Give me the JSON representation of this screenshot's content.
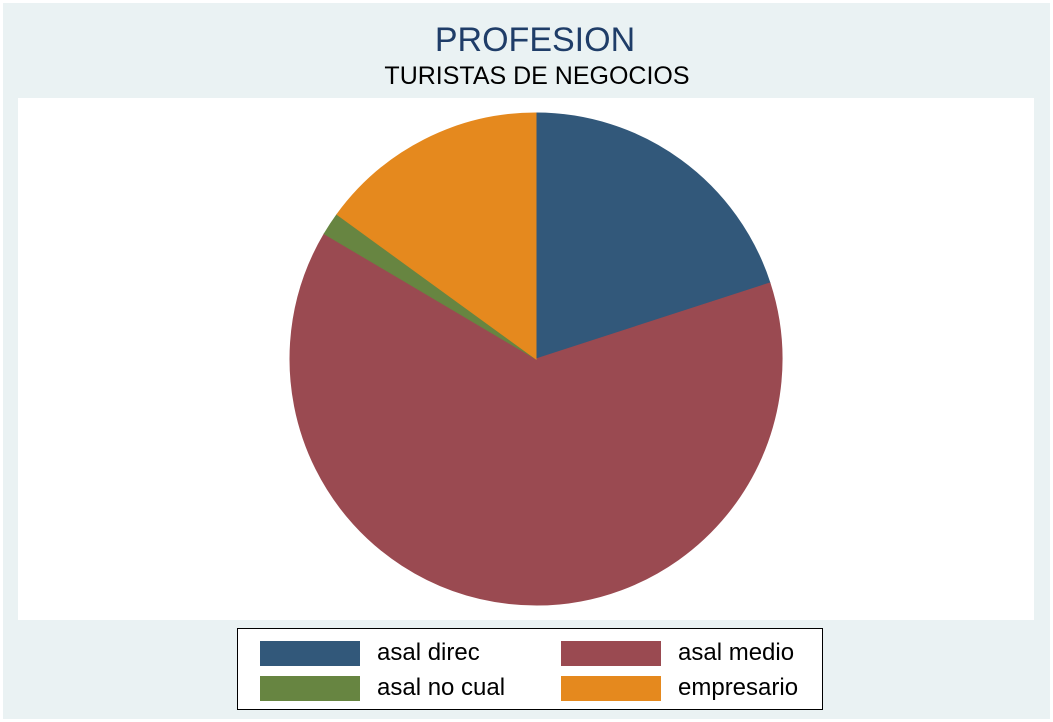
{
  "chart_data": {
    "type": "pie",
    "title": "PROFESION",
    "subtitle": "TURISTAS DE NEGOCIOS",
    "slices": [
      {
        "label": "asal direc",
        "value": 20.0,
        "color": "#32587a"
      },
      {
        "label": "asal medio",
        "value": 63.5,
        "color": "#9a4a51"
      },
      {
        "label": "asal no cual",
        "value": 1.5,
        "color": "#678541"
      },
      {
        "label": "empresario",
        "value": 15.0,
        "color": "#e5891e"
      }
    ],
    "legend_position": "bottom",
    "background_color": "#eaf2f3"
  }
}
